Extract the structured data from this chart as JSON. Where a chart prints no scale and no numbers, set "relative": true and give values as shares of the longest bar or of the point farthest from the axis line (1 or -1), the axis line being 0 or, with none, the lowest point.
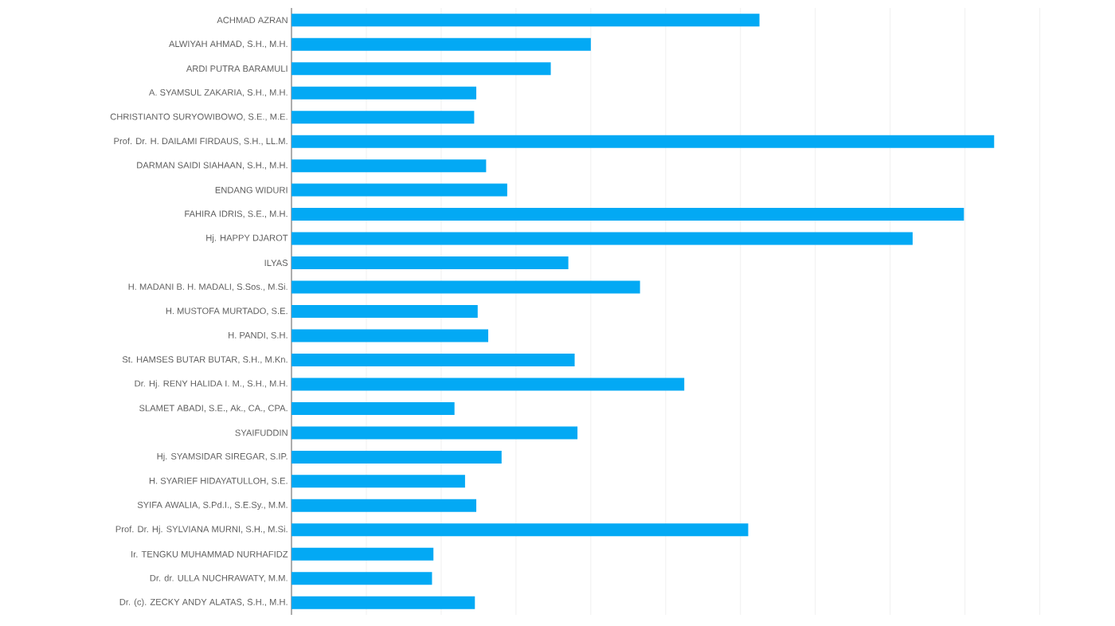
{
  "chart_data": {
    "type": "bar",
    "orientation": "horizontal",
    "relative": true,
    "grid": "x",
    "color": "#03a9f4",
    "categories": [
      "ACHMAD AZRAN",
      "ALWIYAH AHMAD, S.H., M.H.",
      "ARDI PUTRA BARAMULI",
      "A. SYAMSUL ZAKARIA, S.H., M.H.",
      "CHRISTIANTO SURYOWIBOWO, S.E., M.E.",
      "Prof. Dr. H. DAILAMI FIRDAUS, S.H., LL.M.",
      "DARMAN SAIDI SIAHAAN, S.H., M.H.",
      "ENDANG WIDURI",
      "FAHIRA IDRIS, S.E., M.H.",
      "Hj. HAPPY DJAROT",
      "ILYAS",
      "H. MADANI B. H. MADALI, S.Sos., M.Si.",
      "H. MUSTOFA MURTADO, S.E.",
      "H. PANDI, S.H.",
      "St. HAMSES BUTAR BUTAR, S.H., M.Kn.",
      "Dr. Hj. RENY HALIDA I. M., S.H., M.H.",
      "SLAMET ABADI, S.E., Ak., CA., CPA.",
      "SYAIFUDDIN",
      "Hj. SYAMSIDAR SIREGAR, S.IP.",
      "H. SYARIEF HIDAYATULLOH, S.E.",
      "SYIFA AWALIA, S.Pd.I., S.E.Sy., M.M.",
      "Prof. Dr. Hj. SYLVIANA MURNI, S.H., M.Si.",
      "Ir. TENGKU MUHAMMAD NURHAFIDZ",
      "Dr. dr. ULLA NUCHRAWATY, M.M.",
      "Dr. (c). ZECKY ANDY ALATAS, S.H., M.H."
    ],
    "values": [
      0.666,
      0.426,
      0.369,
      0.263,
      0.26,
      1,
      0.277,
      0.307,
      0.957,
      0.884,
      0.394,
      0.496,
      0.265,
      0.28,
      0.403,
      0.559,
      0.232,
      0.407,
      0.299,
      0.247,
      0.263,
      0.65,
      0.202,
      0.2,
      0.261
    ]
  }
}
